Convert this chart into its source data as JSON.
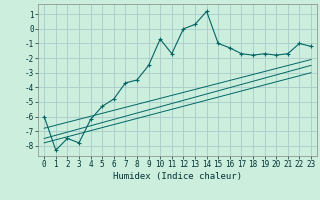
{
  "title": "",
  "xlabel": "Humidex (Indice chaleur)",
  "bg_color": "#cceedd",
  "grid_color": "#aacccc",
  "line_color": "#006666",
  "xlim": [
    -0.5,
    23.5
  ],
  "ylim": [
    -8.7,
    1.7
  ],
  "xticks": [
    0,
    1,
    2,
    3,
    4,
    5,
    6,
    7,
    8,
    9,
    10,
    11,
    12,
    13,
    14,
    15,
    16,
    17,
    18,
    19,
    20,
    21,
    22,
    23
  ],
  "yticks": [
    1,
    0,
    -1,
    -2,
    -3,
    -4,
    -5,
    -6,
    -7,
    -8
  ],
  "main_series_x": [
    0,
    1,
    2,
    3,
    4,
    5,
    6,
    7,
    8,
    9,
    10,
    11,
    12,
    13,
    14,
    15,
    16,
    17,
    18,
    19,
    20,
    21,
    22,
    23
  ],
  "main_series_y": [
    -6.0,
    -8.3,
    -7.5,
    -7.8,
    -6.2,
    -5.3,
    -4.8,
    -3.7,
    -3.5,
    -2.5,
    -0.7,
    -1.7,
    0.0,
    0.3,
    1.2,
    -1.0,
    -1.3,
    -1.7,
    -1.8,
    -1.7,
    -1.8,
    -1.7,
    -1.0,
    -1.2
  ],
  "line1_x": [
    0,
    23
  ],
  "line1_y": [
    -6.8,
    -2.1
  ],
  "line2_x": [
    0,
    23
  ],
  "line2_y": [
    -7.5,
    -2.5
  ],
  "line3_x": [
    0,
    23
  ],
  "line3_y": [
    -7.8,
    -3.0
  ],
  "xlabel_fontsize": 6.5,
  "tick_fontsize": 5.5
}
